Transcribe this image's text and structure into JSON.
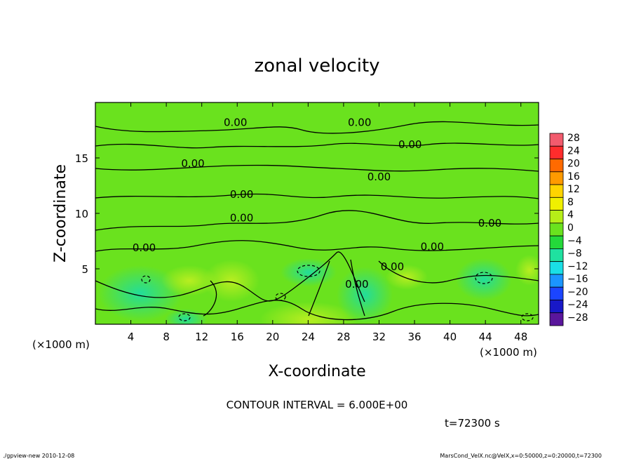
{
  "chart_data": {
    "type": "contour",
    "title": "zonal velocity",
    "xlabel": "X-coordinate",
    "ylabel": "Z-coordinate",
    "x_unit_label": "(×1000 m)",
    "y_unit_label": "(×1000 m)",
    "xlim": [
      0,
      50
    ],
    "ylim": [
      0,
      20
    ],
    "x_ticks": [
      4,
      8,
      12,
      16,
      20,
      24,
      28,
      32,
      36,
      40,
      44,
      48
    ],
    "y_ticks": [
      5,
      10,
      15
    ],
    "contour_label": "0.00",
    "contour_lines_z": [
      17.5,
      13.9,
      11.7,
      8.7,
      6.5,
      3.2
    ],
    "contour_label_positions": [
      {
        "x": 15.8,
        "z": 18.2
      },
      {
        "x": 29.8,
        "z": 18.2
      },
      {
        "x": 35.5,
        "z": 16.2
      },
      {
        "x": 11.0,
        "z": 14.5
      },
      {
        "x": 32.0,
        "z": 13.3
      },
      {
        "x": 16.5,
        "z": 11.7
      },
      {
        "x": 16.5,
        "z": 9.6
      },
      {
        "x": 44.5,
        "z": 9.1
      },
      {
        "x": 5.5,
        "z": 6.9
      },
      {
        "x": 38.0,
        "z": 7.0
      },
      {
        "x": 33.5,
        "z": 5.2
      },
      {
        "x": 29.5,
        "z": 3.6
      }
    ],
    "colorbar": {
      "levels": [
        28,
        24,
        20,
        16,
        12,
        8,
        4,
        0,
        -4,
        -8,
        -12,
        -16,
        -20,
        -24,
        -28
      ],
      "colors": [
        "#f25b6d",
        "#ff2c2c",
        "#ff6a00",
        "#ff9a00",
        "#ffd400",
        "#f0f000",
        "#b6ee18",
        "#6ae21e",
        "#24d93a",
        "#1fe1a0",
        "#1adfe6",
        "#1b95ff",
        "#1b45ff",
        "#1818c8",
        "#5a169c"
      ]
    },
    "info": {
      "contour_interval": "CONTOUR INTERVAL = 6.000E+00",
      "time": "t=72300 s",
      "footer_left": "./gpview-new  2010-12-08",
      "footer_right": "MarsCond_VelX.nc@VelX,x=0:50000,z=0:20000,t=72300"
    }
  }
}
